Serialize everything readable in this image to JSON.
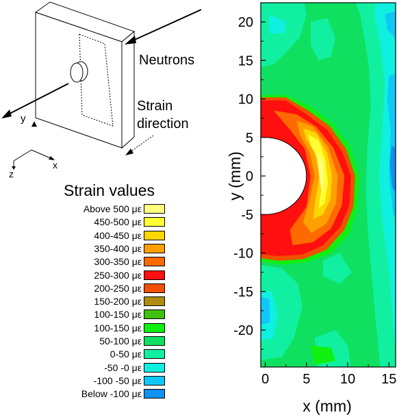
{
  "diagram": {
    "neutrons_label": "Neutrons",
    "strain_direction_line1": "Strain",
    "strain_direction_line2": "direction",
    "axis_y": "y",
    "axis_x": "x",
    "axis_z": "z"
  },
  "legend": {
    "title": "Strain values",
    "items": [
      {
        "label": "Above 500 με",
        "color": "#ffff80"
      },
      {
        "label": "450-500 με",
        "color": "#ffff33"
      },
      {
        "label": "400-450 με",
        "color": "#ffd700"
      },
      {
        "label": "350-400 με",
        "color": "#ffa000"
      },
      {
        "label": "300-350 με",
        "color": "#ff6a00"
      },
      {
        "label": "250-300 με",
        "color": "#ff0f0f"
      },
      {
        "label": "200-250 με",
        "color": "#f05000"
      },
      {
        "label": "150-200 με",
        "color": "#b08c10"
      },
      {
        "label": "100-150 με",
        "color": "#40c010"
      },
      {
        "label": "100-150 με",
        "color": "#10f010"
      },
      {
        "label": "50-100 με",
        "color": "#10e060"
      },
      {
        "label": "0-50 με",
        "color": "#10f0a0"
      },
      {
        "label": "-50 -0 με",
        "color": "#10f0e0"
      },
      {
        "label": "-100 -50 με",
        "color": "#10c8f8"
      },
      {
        "label": "Below -100 με",
        "color": "#1090f0"
      }
    ]
  },
  "chart_data": {
    "type": "heatmap",
    "xlabel": "x (mm)",
    "ylabel": "y (mm)",
    "xlim": [
      0,
      17
    ],
    "ylim": [
      -25,
      23
    ],
    "x_ticks": [
      0,
      5,
      10,
      15
    ],
    "y_ticks": [
      20,
      15,
      10,
      5,
      0,
      -5,
      -10,
      -15,
      -20
    ],
    "hole_radius": 5,
    "colors": {
      "background": "#10e060",
      "cyan": "#10f0a0",
      "light_cyan": "#10f0e0",
      "blue": "#10c8f8",
      "deep_blue": "#1090f0",
      "green": "#10f010",
      "dark_red": "#f05000",
      "red": "#ff0f0f",
      "orange_red": "#ff6a00",
      "orange": "#ffa000",
      "gold": "#ffd700",
      "yellow": "#ffff33",
      "pale_yellow": "#ffff80"
    }
  }
}
